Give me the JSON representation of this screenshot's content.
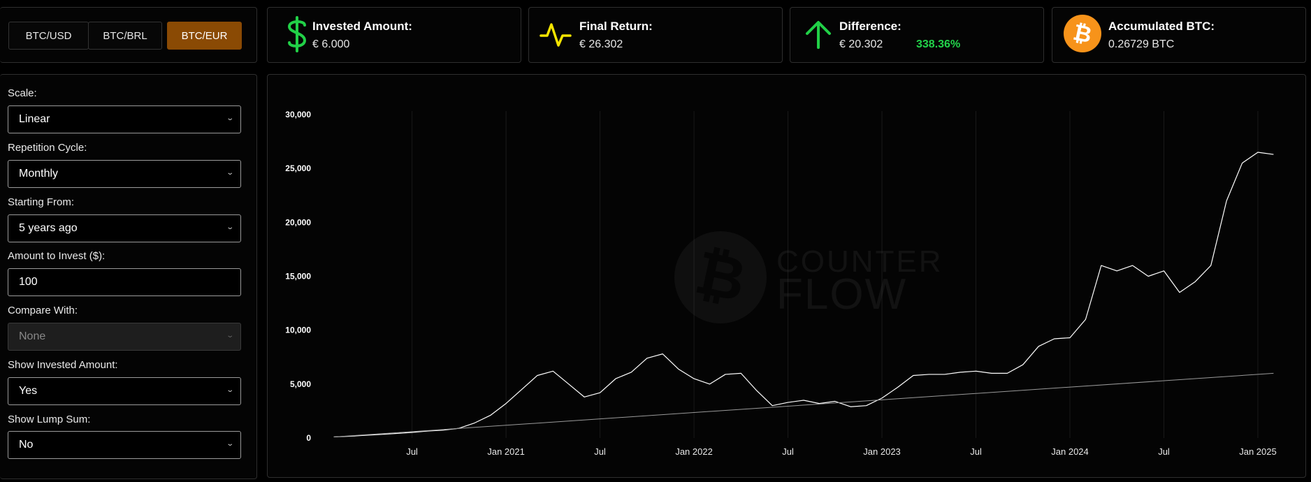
{
  "pairs": [
    {
      "label": "BTC/USD",
      "active": false
    },
    {
      "label": "BTC/BRL",
      "active": false
    },
    {
      "label": "BTC/EUR",
      "active": true
    }
  ],
  "cards": {
    "invested": {
      "label": "Invested Amount:",
      "value": "€ 6.000",
      "icon": "dollar-icon",
      "color": "#21d047"
    },
    "final": {
      "label": "Final Return:",
      "value": "€ 26.302",
      "icon": "pulse-icon",
      "color": "#f5e400"
    },
    "difference": {
      "label": "Difference:",
      "value": "€ 20.302",
      "percent": "338.36%",
      "icon": "arrow-up-icon",
      "color": "#21d047"
    },
    "accumulated": {
      "label": "Accumulated BTC:",
      "value": "0.26729 BTC",
      "icon": "bitcoin-icon",
      "color": "#f7931a"
    }
  },
  "settings": {
    "scale": {
      "label": "Scale:",
      "value": "Linear"
    },
    "cycle": {
      "label": "Repetition Cycle:",
      "value": "Monthly"
    },
    "start": {
      "label": "Starting From:",
      "value": "5 years ago"
    },
    "amount": {
      "label": "Amount to Invest ($):",
      "value": "100"
    },
    "compare": {
      "label": "Compare With:",
      "value": "None"
    },
    "show_invested": {
      "label": "Show Invested Amount:",
      "value": "Yes"
    },
    "show_lump": {
      "label": "Show Lump Sum:",
      "value": "No"
    }
  },
  "watermark": {
    "line1": "COUNTER",
    "line2": "FLOW"
  },
  "chart_data": {
    "type": "line",
    "ylim": [
      0,
      30000
    ],
    "y_ticks": [
      "0",
      "5,000",
      "10,000",
      "15,000",
      "20,000",
      "25,000",
      "30,000"
    ],
    "x_ticks": [
      "Jul",
      "Jan 2021",
      "Jul",
      "Jan 2022",
      "Jul",
      "Jan 2023",
      "Jul",
      "Jan 2024",
      "Jul",
      "Jan 2025"
    ],
    "grid": true,
    "series": [
      {
        "color": "#ffffff",
        "x": [
          "2020-02",
          "2020-03",
          "2020-04",
          "2020-05",
          "2020-06",
          "2020-07",
          "2020-08",
          "2020-09",
          "2020-10",
          "2020-11",
          "2020-12",
          "2021-01",
          "2021-02",
          "2021-03",
          "2021-04",
          "2021-05",
          "2021-06",
          "2021-07",
          "2021-08",
          "2021-09",
          "2021-10",
          "2021-11",
          "2021-12",
          "2022-01",
          "2022-02",
          "2022-03",
          "2022-04",
          "2022-05",
          "2022-06",
          "2022-07",
          "2022-08",
          "2022-09",
          "2022-10",
          "2022-11",
          "2022-12",
          "2023-01",
          "2023-02",
          "2023-03",
          "2023-04",
          "2023-05",
          "2023-06",
          "2023-07",
          "2023-08",
          "2023-09",
          "2023-10",
          "2023-11",
          "2023-12",
          "2024-01",
          "2024-02",
          "2024-03",
          "2024-04",
          "2024-05",
          "2024-06",
          "2024-07",
          "2024-08",
          "2024-09",
          "2024-10",
          "2024-11",
          "2024-12",
          "2025-01",
          "2025-02"
        ],
        "values": [
          100,
          160,
          250,
          330,
          420,
          520,
          650,
          730,
          900,
          1400,
          2100,
          3200,
          4500,
          5800,
          6200,
          5000,
          3800,
          4200,
          5500,
          6100,
          7400,
          7800,
          6400,
          5500,
          5000,
          5900,
          6000,
          4400,
          3000,
          3300,
          3500,
          3200,
          3400,
          2900,
          3000,
          3700,
          4700,
          5800,
          5900,
          5900,
          6100,
          6200,
          6000,
          6000,
          6800,
          8500,
          9200,
          9300,
          11000,
          16000,
          15500,
          16000,
          15000,
          15500,
          13500,
          14500,
          16000,
          22000,
          25500,
          26500,
          26302
        ]
      },
      {
        "color": "#9a9a9a",
        "x": [
          "2020-02",
          "2025-02"
        ],
        "values": [
          100,
          6000
        ]
      }
    ]
  }
}
